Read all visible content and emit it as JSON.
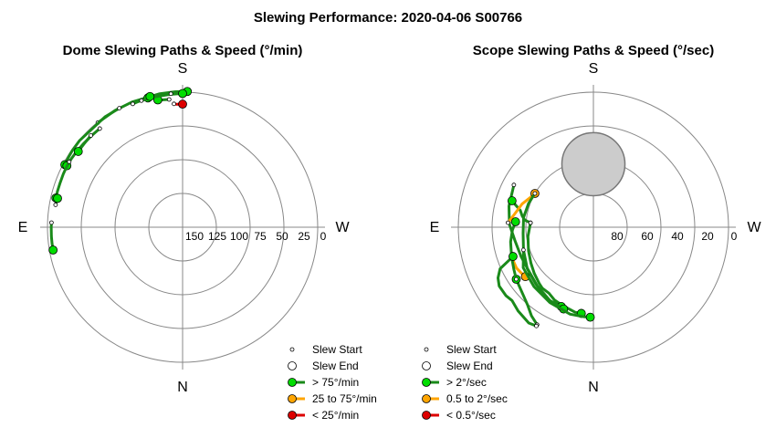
{
  "title": "Slewing Performance: 2020-04-06 S00766",
  "colors": {
    "fast": "#00dd00",
    "mid": "#ffa500",
    "slow": "#dd0000",
    "path_green": "#1a8a1a",
    "path_orange": "#ffa500",
    "path_red": "#dd0000",
    "ring": "#888888",
    "obstruction": "#cccccc"
  },
  "chart_data": [
    {
      "type": "scatter",
      "name": "dome",
      "title": "Dome Slewing Paths & Speed (°/min)",
      "directions": {
        "top": "S",
        "bottom": "N",
        "left": "E",
        "right": "W"
      },
      "r_ticks": [
        "150",
        "125",
        "100",
        "75",
        "50",
        "25",
        "0"
      ],
      "legend": [
        {
          "label": "Slew Start",
          "kind": "start"
        },
        {
          "label": "Slew End",
          "kind": "end"
        },
        {
          "label": "> 75°/min",
          "kind": "fast"
        },
        {
          "label": "25 to 75°/min",
          "kind": "mid"
        },
        {
          "label": "< 25°/min",
          "kind": "slow"
        }
      ],
      "paths": [
        {
          "speed": "slow",
          "points": [
            [
              -4,
              7.6
            ],
            [
              -3,
              7.9
            ],
            [
              -2,
              8.0
            ],
            [
              -1,
              8.0
            ],
            [
              0,
              8.0
            ]
          ]
        },
        {
          "speed": "fast",
          "points": [
            [
              -6,
              4.4
            ],
            [
              -8,
              4.2
            ],
            [
              -10,
              3.9
            ],
            [
              -11,
              3.6
            ]
          ]
        },
        {
          "speed": "fast",
          "points": [
            [
              -39,
              0.3
            ],
            [
              -30,
              0.1
            ],
            [
              -22,
              0.0
            ],
            [
              -10,
              -0.2
            ],
            [
              -3,
              -0.4
            ],
            [
              2,
              -0.5
            ]
          ]
        },
        {
          "speed": "fast",
          "points": [
            [
              -28,
              0.2
            ],
            [
              -35,
              0.1
            ],
            [
              -50,
              0.3
            ],
            [
              -55,
              0.5
            ],
            [
              -58,
              0.8
            ],
            [
              -60,
              1.0
            ],
            [
              -62,
              1.2
            ]
          ]
        },
        {
          "speed": "fast",
          "points": [
            [
              -22,
              1.4
            ],
            [
              -20,
              1.3
            ],
            [
              -17,
              1.1
            ],
            [
              -15,
              0.8
            ]
          ]
        },
        {
          "speed": "fast",
          "points": [
            [
              -18,
              1.3
            ],
            [
              -12,
              1.2
            ],
            [
              -6,
              1.1
            ],
            [
              -2,
              1.0
            ],
            [
              0,
              0.9
            ]
          ]
        },
        {
          "speed": "fast",
          "points": [
            [
              -5,
              0.7
            ],
            [
              -10,
              0.5
            ],
            [
              -12,
              0.3
            ],
            [
              -14,
              0.2
            ]
          ]
        },
        {
          "speed": "fast",
          "points": [
            [
              -40,
              4.2
            ],
            [
              -44,
              4.0
            ],
            [
              -50,
              3.6
            ],
            [
              -55,
              3.2
            ],
            [
              -58,
              3.0
            ],
            [
              -62,
              2.7
            ]
          ]
        },
        {
          "speed": "fast",
          "points": [
            [
              -60,
              2.8
            ],
            [
              -63,
              2.9
            ],
            [
              -66,
              3.0
            ],
            [
              -70,
              3.2
            ],
            [
              -74,
              3.3
            ],
            [
              -77,
              3.4
            ]
          ]
        },
        {
          "speed": "fast",
          "points": [
            [
              -88,
              2.6
            ],
            [
              -90,
              2.5
            ],
            [
              -94,
              2.4
            ],
            [
              -97,
              2.4
            ],
            [
              -100,
              2.4
            ]
          ]
        },
        {
          "speed": "fast",
          "points": [
            [
              -80,
              4.1
            ],
            [
              -78,
              4.3
            ],
            [
              -77,
              4.5
            ]
          ]
        },
        {
          "speed": "fast",
          "points": [
            [
              -45,
              3.6
            ],
            [
              -50,
              4.0
            ],
            [
              -54,
              4.1
            ]
          ]
        }
      ]
    },
    {
      "type": "scatter",
      "name": "scope",
      "title": "Scope Slewing Paths & Speed (°/sec)",
      "directions": {
        "top": "S",
        "bottom": "N",
        "left": "E",
        "right": "W"
      },
      "r_ticks": [
        "80",
        "60",
        "40",
        "20",
        "0"
      ],
      "legend": [
        {
          "label": "Slew Start",
          "kind": "start"
        },
        {
          "label": "Slew End",
          "kind": "end"
        },
        {
          "label": "> 2°/sec",
          "kind": "fast"
        },
        {
          "label": "0.5 to 2°/sec",
          "kind": "mid"
        },
        {
          "label": "< 0.5°/sec",
          "kind": "slow"
        }
      ],
      "obstruction": {
        "center_alt": 48,
        "center_az": 0,
        "radius_deg": 21
      },
      "paths": [
        {
          "speed": "fast",
          "points": [
            [
              -86,
              48
            ],
            [
              -98,
              46
            ],
            [
              -110,
              44
            ],
            [
              -120,
              42
            ],
            [
              -128,
              40
            ],
            [
              -136,
              38
            ],
            [
              -140,
              37
            ],
            [
              -146,
              37
            ],
            [
              -152,
              35
            ],
            [
              -158,
              34
            ],
            [
              -164,
              33
            ],
            [
              -168,
              32
            ],
            [
              -172,
              32
            ]
          ]
        },
        {
          "speed": "fast",
          "points": [
            [
              -62,
              30
            ],
            [
              -76,
              32
            ],
            [
              -88,
              34
            ],
            [
              -100,
              37
            ],
            [
              -112,
              38
            ],
            [
              -124,
              38
            ],
            [
              -136,
              36
            ],
            [
              -148,
              33
            ],
            [
              -158,
              33
            ]
          ]
        },
        {
          "speed": "fast",
          "points": [
            [
              -86,
              48
            ],
            [
              -84,
              44
            ],
            [
              -81,
              42
            ],
            [
              -77,
              40
            ],
            [
              -74,
              36
            ],
            [
              -72,
              33
            ]
          ]
        },
        {
          "speed": "mid",
          "points": [
            [
              -87,
              33
            ],
            [
              -80,
              37
            ],
            [
              -72,
              40
            ],
            [
              -66,
              43
            ],
            [
              -60,
              45
            ]
          ]
        },
        {
          "speed": "mid",
          "points": [
            [
              -110,
              32
            ],
            [
              -118,
              32
            ],
            [
              -122,
              33
            ],
            [
              -126,
              34
            ]
          ]
        },
        {
          "speed": "fast",
          "points": [
            [
              -60,
              45
            ],
            [
              -70,
              44
            ],
            [
              -82,
              43
            ],
            [
              -95,
              43
            ],
            [
              -108,
              41
            ],
            [
              -122,
              38
            ],
            [
              -135,
              36
            ],
            [
              -150,
              33
            ],
            [
              -160,
              32
            ]
          ]
        },
        {
          "speed": "fast",
          "points": [
            [
              -108,
              41
            ],
            [
              -120,
              36
            ],
            [
              -135,
              34
            ],
            [
              -150,
              32
            ],
            [
              -165,
              30
            ],
            [
              -174,
              30
            ],
            [
              -178,
              30
            ]
          ]
        },
        {
          "speed": "fast",
          "points": [
            [
              -150,
              15
            ],
            [
              -145,
              18
            ],
            [
              -140,
              22
            ],
            [
              -134,
              25
            ],
            [
              -128,
              27
            ],
            [
              -124,
              28
            ]
          ]
        },
        {
          "speed": "fast",
          "points": [
            [
              -124,
              28
            ],
            [
              -118,
              30
            ],
            [
              -110,
              32
            ],
            [
              -100,
              34
            ],
            [
              -92,
              36
            ],
            [
              -86,
              38
            ]
          ]
        },
        {
          "speed": "fast",
          "points": [
            [
              -150,
              14
            ],
            [
              -146,
              13
            ],
            [
              -138,
              15
            ],
            [
              -132,
              17
            ],
            [
              -128,
              16
            ],
            [
              -122,
              16
            ],
            [
              -118,
              18
            ],
            [
              -114,
              22
            ],
            [
              -112,
              28
            ],
            [
              -110,
              33
            ]
          ]
        }
      ]
    }
  ]
}
